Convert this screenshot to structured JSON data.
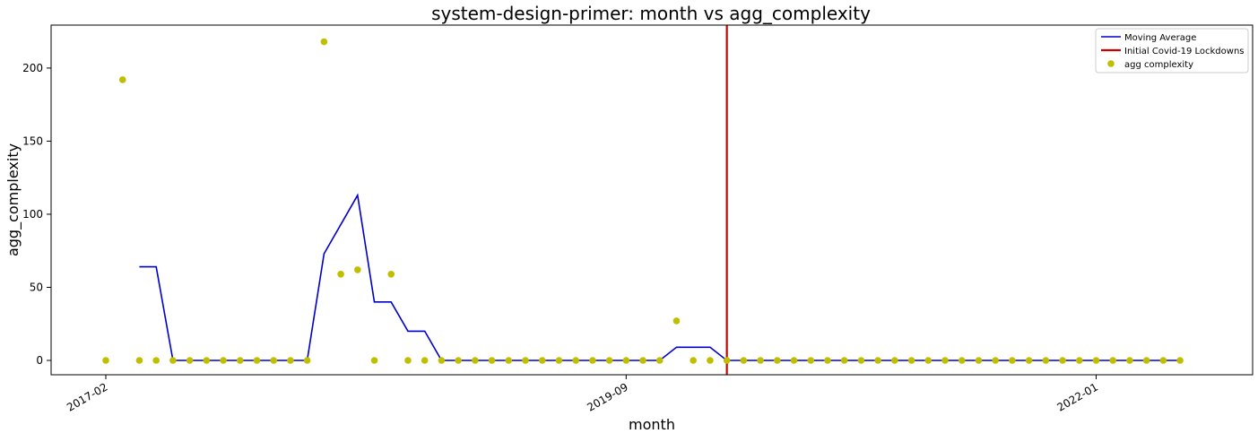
{
  "chart_data": {
    "type": "line",
    "title": "system-design-primer: month vs agg_complexity",
    "xlabel": "month",
    "ylabel": "agg_complexity",
    "x_tick_labels": [
      "2017-02",
      "2019-09",
      "2022-01"
    ],
    "y_ticks": [
      0,
      50,
      100,
      150,
      200
    ],
    "ylim": [
      -10,
      228
    ],
    "grid": false,
    "legend_position": "top-right",
    "colors": {
      "moving_average": "#0000cc",
      "covid_line": "#cc0000",
      "scatter": "#bfbf00"
    },
    "legend": {
      "moving_average": "Moving Average",
      "covid_line": "Initial Covid-19 Lockdowns",
      "scatter": "agg complexity"
    },
    "covid_line_x": "2020-03",
    "scatter_series": {
      "name": "agg complexity",
      "x": [
        "2017-02",
        "2017-03",
        "2017-04",
        "2017-05",
        "2017-06",
        "2017-07",
        "2017-08",
        "2017-09",
        "2017-10",
        "2017-11",
        "2017-12",
        "2018-01",
        "2018-02",
        "2018-03",
        "2018-04",
        "2018-05",
        "2018-06",
        "2018-07",
        "2018-08",
        "2018-09",
        "2018-10",
        "2018-11",
        "2018-12",
        "2019-01",
        "2019-02",
        "2019-03",
        "2019-04",
        "2019-05",
        "2019-06",
        "2019-07",
        "2019-08",
        "2019-09",
        "2019-10",
        "2019-11",
        "2019-12",
        "2020-01",
        "2020-02",
        "2020-03",
        "2020-04",
        "2020-05",
        "2020-06",
        "2020-07",
        "2020-08",
        "2020-09",
        "2020-10",
        "2020-11",
        "2020-12",
        "2021-01",
        "2021-02",
        "2021-03",
        "2021-04",
        "2021-05",
        "2021-06",
        "2021-07",
        "2021-08",
        "2021-09",
        "2021-10",
        "2021-11",
        "2021-12",
        "2022-01",
        "2022-02",
        "2022-03",
        "2022-04",
        "2022-05",
        "2022-06"
      ],
      "y": [
        0,
        192,
        0,
        0,
        0,
        0,
        0,
        0,
        0,
        0,
        0,
        0,
        0,
        218,
        59,
        62,
        0,
        59,
        0,
        0,
        0,
        0,
        0,
        0,
        0,
        0,
        0,
        0,
        0,
        0,
        0,
        0,
        0,
        0,
        27,
        0,
        0,
        0,
        0,
        0,
        0,
        0,
        0,
        0,
        0,
        0,
        0,
        0,
        0,
        0,
        0,
        0,
        0,
        0,
        0,
        0,
        0,
        0,
        0,
        0,
        0,
        0,
        0,
        0,
        0
      ]
    },
    "moving_average": {
      "name": "Moving Average",
      "x": [
        "2017-04",
        "2017-05",
        "2017-06",
        "2017-07",
        "2017-08",
        "2017-09",
        "2017-10",
        "2017-11",
        "2017-12",
        "2018-01",
        "2018-02",
        "2018-03",
        "2018-04",
        "2018-05",
        "2018-06",
        "2018-07",
        "2018-08",
        "2018-09",
        "2018-10",
        "2018-11",
        "2018-12",
        "2019-01",
        "2019-02",
        "2019-03",
        "2019-04",
        "2019-05",
        "2019-06",
        "2019-07",
        "2019-08",
        "2019-09",
        "2019-10",
        "2019-11",
        "2019-12",
        "2020-01",
        "2020-02",
        "2020-03",
        "2020-04",
        "2020-05",
        "2020-06",
        "2020-07",
        "2020-08",
        "2020-09",
        "2020-10",
        "2020-11",
        "2020-12",
        "2021-01",
        "2021-02",
        "2021-03",
        "2021-04",
        "2021-05",
        "2021-06",
        "2021-07",
        "2021-08",
        "2021-09",
        "2021-10",
        "2021-11",
        "2021-12",
        "2022-01",
        "2022-02",
        "2022-03",
        "2022-04",
        "2022-05",
        "2022-06"
      ],
      "y": [
        64,
        64,
        0,
        0,
        0,
        0,
        0,
        0,
        0,
        0,
        0,
        73,
        93,
        113,
        40,
        40,
        20,
        20,
        0,
        0,
        0,
        0,
        0,
        0,
        0,
        0,
        0,
        0,
        0,
        0,
        0,
        0,
        9,
        9,
        9,
        0,
        0,
        0,
        0,
        0,
        0,
        0,
        0,
        0,
        0,
        0,
        0,
        0,
        0,
        0,
        0,
        0,
        0,
        0,
        0,
        0,
        0,
        0,
        0,
        0,
        0,
        0,
        0
      ]
    }
  }
}
